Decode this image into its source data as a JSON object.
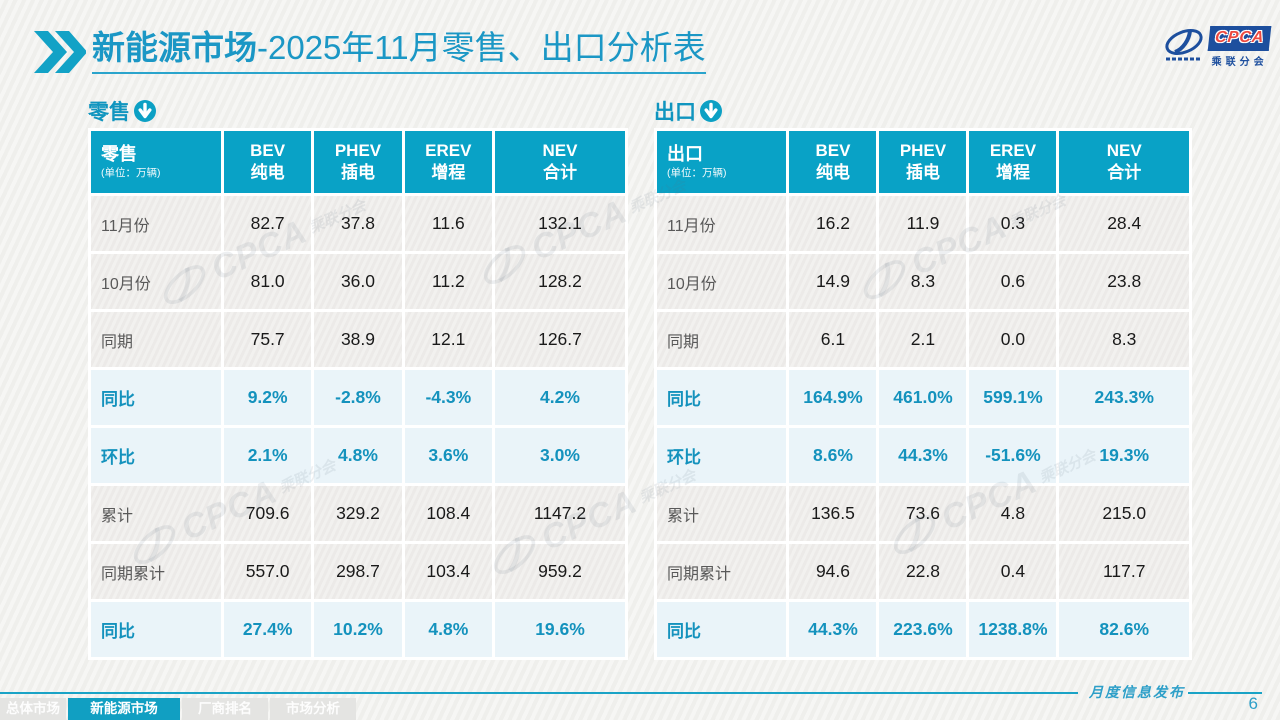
{
  "title": {
    "bold": "新能源市场",
    "rest": "-2025年11月零售、出口分析表"
  },
  "logo": {
    "cpca": "CPCA",
    "sub": "乘联分会"
  },
  "colors": {
    "accent_teal": "#09A2C6",
    "title_teal": "#1B97C5",
    "percent_text": "#1492BD",
    "percent_row_bg": "#EAF4F9",
    "data_row_bg": "#EFEEEC",
    "logo_blue": "#1D4F9E",
    "logo_red": "#ED4A40",
    "page_bg": "#F3F3F1"
  },
  "sections": {
    "retail": {
      "label": "零售",
      "corner": {
        "title": "零售",
        "unit": "(单位：万辆)"
      },
      "columns": [
        {
          "line1": "BEV",
          "line2": "纯电"
        },
        {
          "line1": "PHEV",
          "line2": "插电"
        },
        {
          "line1": "EREV",
          "line2": "增程"
        },
        {
          "line1": "NEV",
          "line2": "合计"
        }
      ],
      "rows": [
        {
          "label": "11月份",
          "type": "data",
          "values": [
            "82.7",
            "37.8",
            "11.6",
            "132.1"
          ]
        },
        {
          "label": "10月份",
          "type": "data",
          "values": [
            "81.0",
            "36.0",
            "11.2",
            "128.2"
          ]
        },
        {
          "label": "同期",
          "type": "data",
          "values": [
            "75.7",
            "38.9",
            "12.1",
            "126.7"
          ]
        },
        {
          "label": "同比",
          "type": "percent",
          "values": [
            "9.2%",
            "-2.8%",
            "-4.3%",
            "4.2%"
          ]
        },
        {
          "label": "环比",
          "type": "percent",
          "values": [
            "2.1%",
            "4.8%",
            "3.6%",
            "3.0%"
          ]
        },
        {
          "label": "累计",
          "type": "data",
          "values": [
            "709.6",
            "329.2",
            "108.4",
            "1147.2"
          ]
        },
        {
          "label": "同期累计",
          "type": "data",
          "values": [
            "557.0",
            "298.7",
            "103.4",
            "959.2"
          ]
        },
        {
          "label": "同比",
          "type": "percent",
          "values": [
            "27.4%",
            "10.2%",
            "4.8%",
            "19.6%"
          ]
        }
      ]
    },
    "export": {
      "label": "出口",
      "corner": {
        "title": "出口",
        "unit": "(单位：万辆)"
      },
      "columns": [
        {
          "line1": "BEV",
          "line2": "纯电"
        },
        {
          "line1": "PHEV",
          "line2": "插电"
        },
        {
          "line1": "EREV",
          "line2": "增程"
        },
        {
          "line1": "NEV",
          "line2": "合计"
        }
      ],
      "rows": [
        {
          "label": "11月份",
          "type": "data",
          "values": [
            "16.2",
            "11.9",
            "0.3",
            "28.4"
          ]
        },
        {
          "label": "10月份",
          "type": "data",
          "values": [
            "14.9",
            "8.3",
            "0.6",
            "23.8"
          ]
        },
        {
          "label": "同期",
          "type": "data",
          "values": [
            "6.1",
            "2.1",
            "0.0",
            "8.3"
          ]
        },
        {
          "label": "同比",
          "type": "percent",
          "values": [
            "164.9%",
            "461.0%",
            "599.1%",
            "243.3%"
          ]
        },
        {
          "label": "环比",
          "type": "percent",
          "values": [
            "8.6%",
            "44.3%",
            "-51.6%",
            "19.3%"
          ]
        },
        {
          "label": "累计",
          "type": "data",
          "values": [
            "136.5",
            "73.6",
            "4.8",
            "215.0"
          ]
        },
        {
          "label": "同期累计",
          "type": "data",
          "values": [
            "94.6",
            "22.8",
            "0.4",
            "117.7"
          ]
        },
        {
          "label": "同比",
          "type": "percent",
          "values": [
            "44.3%",
            "223.6%",
            "1238.8%",
            "82.6%"
          ]
        }
      ]
    }
  },
  "footer": {
    "tabs": [
      {
        "label": "总体市场",
        "active": false
      },
      {
        "label": "新能源市场",
        "active": true
      },
      {
        "label": "厂商排名",
        "active": false
      },
      {
        "label": "市场分析",
        "active": false
      }
    ],
    "publication": "月度信息发布",
    "page": "6"
  },
  "watermark": {
    "main": "CPCA",
    "sub": "乘联分会"
  }
}
